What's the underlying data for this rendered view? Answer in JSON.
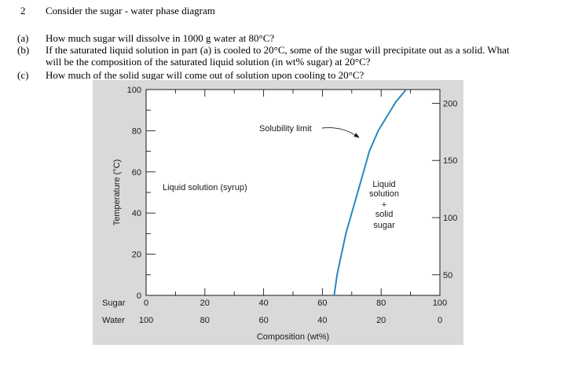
{
  "problem": {
    "number": "2",
    "title": "Consider the sugar - water phase diagram",
    "parts": [
      {
        "label": "(a)",
        "lines": [
          "How much sugar will dissolve in 1000 g water at 80°C?"
        ]
      },
      {
        "label": "(b)",
        "lines": [
          "If the saturated liquid solution in part (a) is cooled to 20°C, some of the sugar will precipitate out as a solid. What",
          "will be the composition of the saturated liquid solution (in wt% sugar) at 20°C?"
        ]
      },
      {
        "label": "(c)",
        "lines": [
          "How much of the solid sugar will come out of solution upon cooling to 20°C?"
        ]
      }
    ]
  },
  "chart_data": {
    "type": "line",
    "xlabel": "Composition (wt%)",
    "ylabel": "Temperature (°C)",
    "x_row_labels": {
      "sugar": "Sugar",
      "water": "Water"
    },
    "xlim": [
      0,
      100
    ],
    "ylim": [
      0,
      100
    ],
    "x_ticks_sugar": [
      "0",
      "20",
      "40",
      "60",
      "80",
      "100"
    ],
    "x_ticks_water": [
      "100",
      "80",
      "60",
      "40",
      "20",
      "0"
    ],
    "y_ticks": [
      "0",
      "20",
      "40",
      "60",
      "80",
      "100"
    ],
    "y2_ticks": [
      "50",
      "100",
      "150",
      "200"
    ],
    "series": [
      {
        "color": "#2a87c0",
        "x": [
          64,
          65,
          66.5,
          68,
          70,
          72,
          74,
          76,
          79,
          82,
          85,
          88.5
        ],
        "y": [
          0,
          10,
          20,
          30,
          40,
          50,
          60,
          70,
          80,
          87,
          94,
          100
        ]
      }
    ],
    "annotations": {
      "solubility_limit": "Solubility limit",
      "liquid_region": "Liquid solution (syrup)",
      "two_phase_region": [
        "Liquid",
        "solution",
        "+",
        "solid",
        "sugar"
      ]
    }
  }
}
